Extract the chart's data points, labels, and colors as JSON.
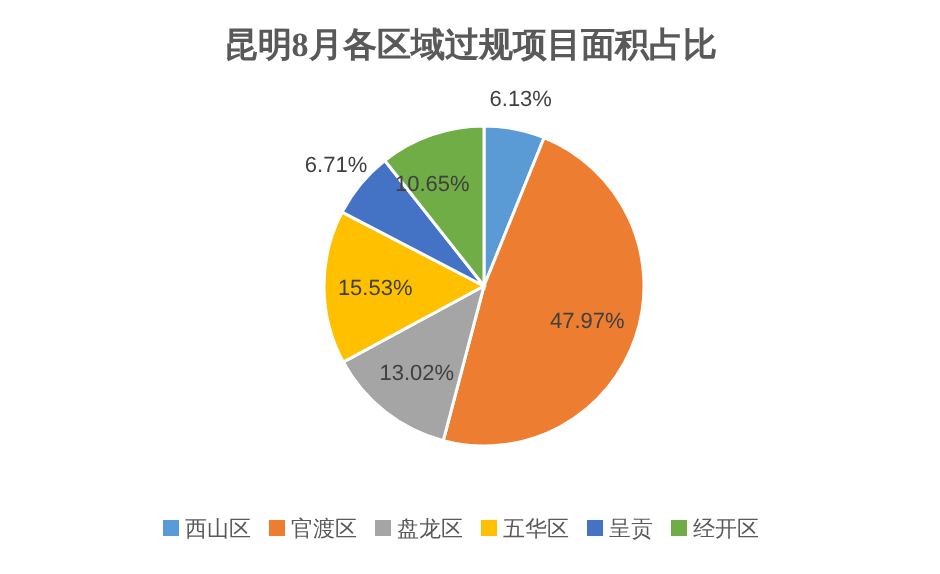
{
  "chart_data": {
    "type": "pie",
    "title": "昆明8月各区域过规项目面积占比",
    "categories": [
      "西山区",
      "官渡区",
      "盘龙区",
      "五华区",
      "呈贡",
      "经开区"
    ],
    "values": [
      6.13,
      47.97,
      13.02,
      15.53,
      6.71,
      10.65
    ],
    "colors": [
      "#5b9bd5",
      "#ed7d31",
      "#a5a5a5",
      "#ffc000",
      "#4472c4",
      "#70ad47"
    ],
    "value_labels": [
      "6.13%",
      "47.97%",
      "13.02%",
      "15.53%",
      "6.71%",
      "10.65%"
    ],
    "legend": "bottom"
  }
}
